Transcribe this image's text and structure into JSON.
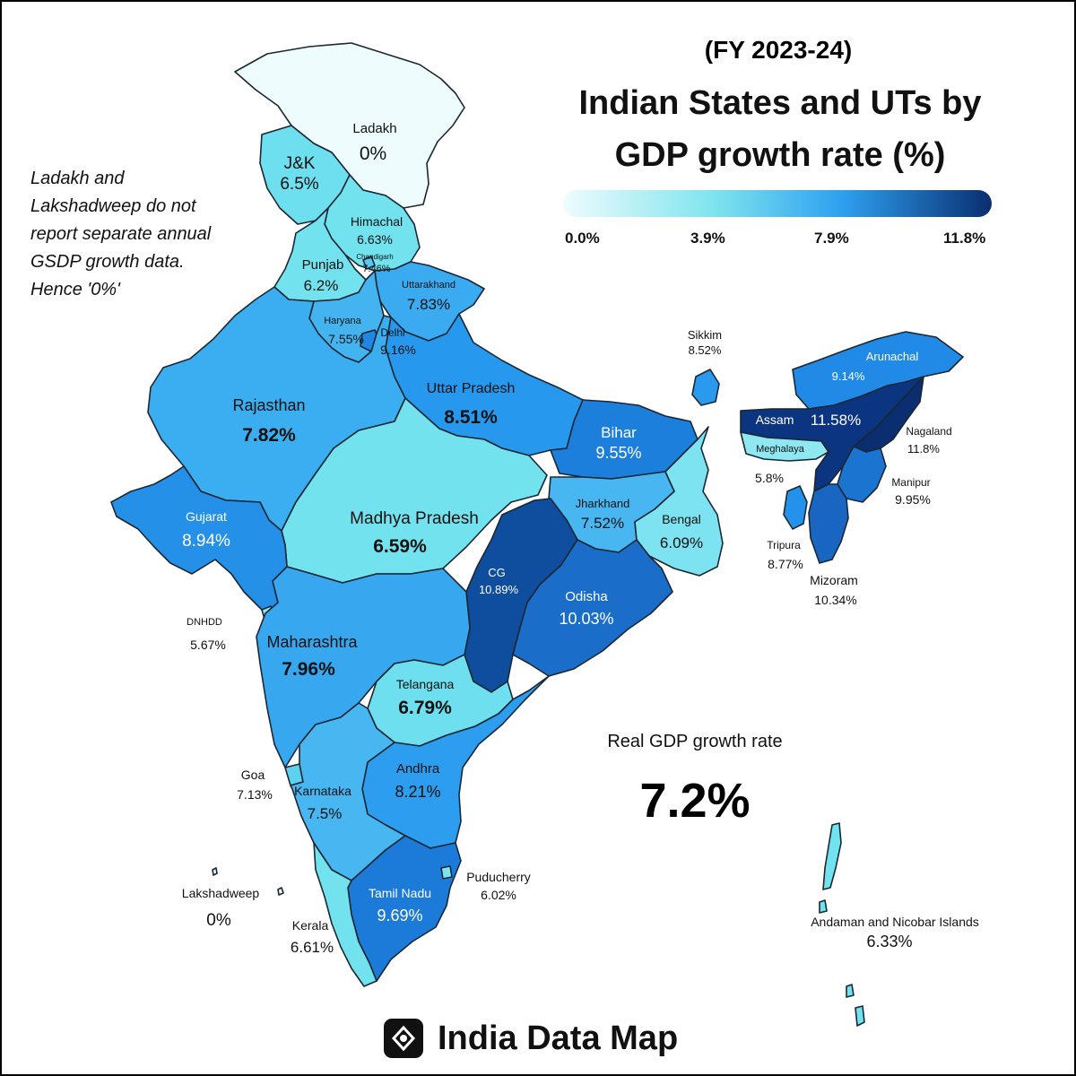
{
  "header": {
    "subtitle": "(FY 2023-24)",
    "title_line1": "Indian States and UTs by",
    "title_line2": "GDP growth rate (%)"
  },
  "legend": {
    "ticks": [
      "0.0%",
      "3.9%",
      "7.9%",
      "11.8%"
    ],
    "min": 0.0,
    "max": 11.8,
    "colors": [
      "#eefcfd",
      "#7fe4ee",
      "#2ea0f0",
      "#0a2e70"
    ]
  },
  "note": {
    "line1": "Ladakh and",
    "line2": "Lakshadweep do not",
    "line3": "report separate annual",
    "line4": "GSDP growth data.",
    "line5": "Hence '0%'"
  },
  "national": {
    "label": "Real GDP growth rate",
    "value": "7.2%"
  },
  "brand": {
    "name": "India Data Map"
  },
  "regions": {
    "ladakh": {
      "name": "Ladakh",
      "value": "0%",
      "growth": 0.0,
      "color": "#eefcfd"
    },
    "jk": {
      "name": "J&K",
      "value": "6.5%",
      "growth": 6.5,
      "color": "#6edfee"
    },
    "himachal": {
      "name": "Himachal",
      "value": "6.63%",
      "growth": 6.63,
      "color": "#72e2ef"
    },
    "chandigarh": {
      "name": "Chandigarh",
      "value": "7.46%",
      "growth": 7.46,
      "color": "#5cc8f0"
    },
    "punjab": {
      "name": "Punjab",
      "value": "6.2%",
      "growth": 6.2,
      "color": "#72e2ef"
    },
    "uttarakhand": {
      "name": "Uttarakhand",
      "value": "7.83%",
      "growth": 7.83,
      "color": "#3aabf0"
    },
    "haryana": {
      "name": "Haryana",
      "value": "7.55%",
      "growth": 7.55,
      "color": "#44b4f0"
    },
    "delhi": {
      "name": "Delhi",
      "value": "9.16%",
      "growth": 9.16,
      "color": "#1f86e4"
    },
    "rajasthan": {
      "name": "Rajasthan",
      "value": "7.82%",
      "growth": 7.82,
      "color": "#3aaef0"
    },
    "up": {
      "name": "Uttar Pradesh",
      "value": "8.51%",
      "growth": 8.51,
      "color": "#2698ee"
    },
    "bihar": {
      "name": "Bihar",
      "value": "9.55%",
      "growth": 9.55,
      "color": "#1c7fdc"
    },
    "sikkim": {
      "name": "Sikkim",
      "value": "8.52%",
      "growth": 8.52,
      "color": "#2a9aee"
    },
    "arunachal": {
      "name": "Arunachal",
      "value": "9.14%",
      "growth": 9.14,
      "color": "#218ae6"
    },
    "assam": {
      "name": "Assam",
      "value": "11.58%",
      "growth": 11.58,
      "color": "#0b3580"
    },
    "nagaland": {
      "name": "Nagaland",
      "value": "11.8%",
      "growth": 11.8,
      "color": "#0a2e70"
    },
    "meghalaya": {
      "name": "Meghalaya",
      "value": "5.8%",
      "growth": 5.8,
      "color": "#8ee7f1"
    },
    "manipur": {
      "name": "Manipur",
      "value": "9.95%",
      "growth": 9.95,
      "color": "#1b74d0"
    },
    "tripura": {
      "name": "Tripura",
      "value": "8.77%",
      "growth": 8.77,
      "color": "#2492ea"
    },
    "mizoram": {
      "name": "Mizoram",
      "value": "10.34%",
      "growth": 10.34,
      "color": "#1966c2"
    },
    "gujarat": {
      "name": "Gujarat",
      "value": "8.94%",
      "growth": 8.94,
      "color": "#2590e8"
    },
    "mp": {
      "name": "Madhya Pradesh",
      "value": "6.59%",
      "growth": 6.59,
      "color": "#72e2ef"
    },
    "jharkhand": {
      "name": "Jharkhand",
      "value": "7.52%",
      "growth": 7.52,
      "color": "#48b6f0"
    },
    "bengal": {
      "name": "Bengal",
      "value": "6.09%",
      "growth": 6.09,
      "color": "#7ee3f0"
    },
    "cg": {
      "name": "CG",
      "value": "10.89%",
      "growth": 10.89,
      "color": "#0f4d9e"
    },
    "odisha": {
      "name": "Odisha",
      "value": "10.03%",
      "growth": 10.03,
      "color": "#1a6ec9"
    },
    "dnhdd": {
      "name": "DNHDD",
      "value": "5.67%",
      "growth": 5.67,
      "color": "#8ee7f1"
    },
    "maharashtra": {
      "name": "Maharashtra",
      "value": "7.96%",
      "growth": 7.96,
      "color": "#37a8f0"
    },
    "telangana": {
      "name": "Telangana",
      "value": "6.79%",
      "growth": 6.79,
      "color": "#6edfee"
    },
    "goa": {
      "name": "Goa",
      "value": "7.13%",
      "growth": 7.13,
      "color": "#5dd2ef"
    },
    "karnataka": {
      "name": "Karnataka",
      "value": "7.5%",
      "growth": 7.5,
      "color": "#48b6f0"
    },
    "andhra": {
      "name": "Andhra",
      "value": "8.21%",
      "growth": 8.21,
      "color": "#2d9def"
    },
    "puducherry": {
      "name": "Puducherry",
      "value": "6.02%",
      "growth": 6.02,
      "color": "#7ee3f0"
    },
    "lakshadweep": {
      "name": "Lakshadweep",
      "value": "0%",
      "growth": 0.0,
      "color": "#eefcfd"
    },
    "kerala": {
      "name": "Kerala",
      "value": "6.61%",
      "growth": 6.61,
      "color": "#72e2ef"
    },
    "tamilnadu": {
      "name": "Tamil Nadu",
      "value": "9.69%",
      "growth": 9.69,
      "color": "#1c7bd8"
    },
    "andaman": {
      "name": "Andaman and Nicobar Islands",
      "value": "6.33%",
      "growth": 6.33,
      "color": "#72e2ef"
    }
  }
}
